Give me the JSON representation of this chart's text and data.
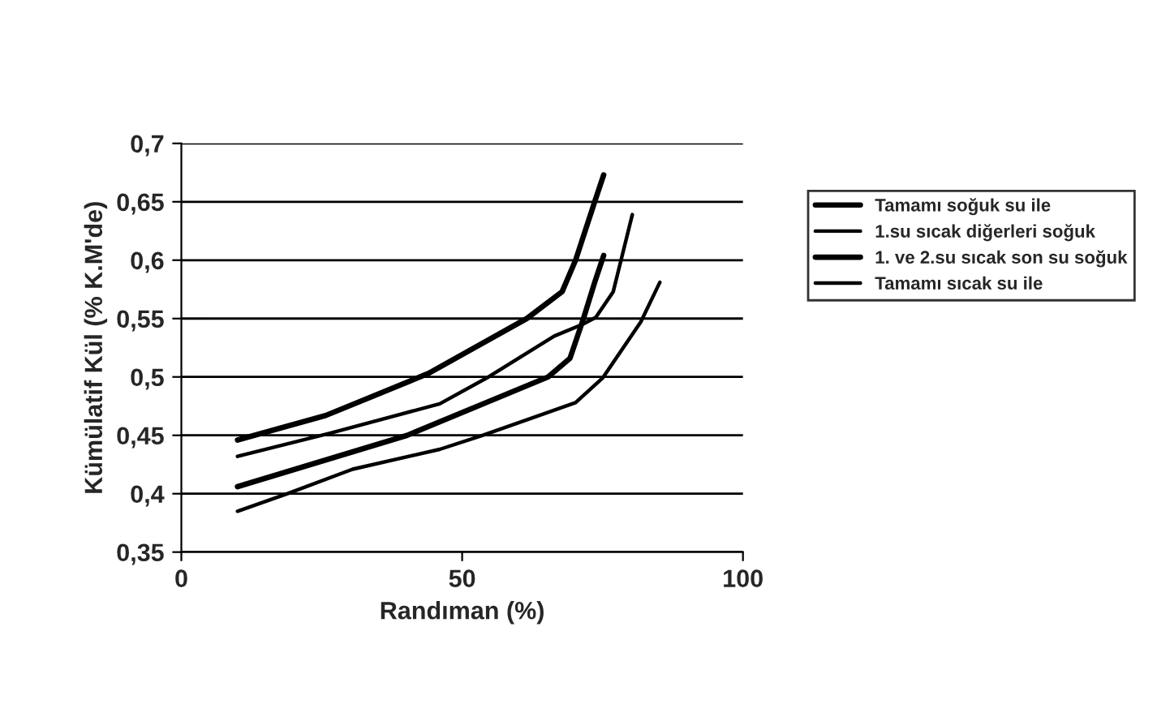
{
  "chart_data": {
    "type": "line",
    "xlabel": "Randıman (%)",
    "ylabel": "Kümülatif Kül (% K.M'de)",
    "xlim": [
      0,
      100
    ],
    "xticks": [
      0,
      50,
      100
    ],
    "ylim": [
      0.35,
      0.7
    ],
    "yticks": [
      {
        "value": 0.35,
        "label": "0,35"
      },
      {
        "value": 0.4,
        "label": "0,4"
      },
      {
        "value": 0.45,
        "label": "0,45"
      },
      {
        "value": 0.5,
        "label": "0,5"
      },
      {
        "value": 0.55,
        "label": "0,55"
      },
      {
        "value": 0.6,
        "label": "0,6"
      },
      {
        "value": 0.65,
        "label": "0,65"
      },
      {
        "value": 0.7,
        "label": "0,7"
      }
    ],
    "grid": "y",
    "legend": "right",
    "marker": "none",
    "line_style": "solid",
    "series": [
      {
        "name": "Tamamı soğuk su ile",
        "color": "#000000",
        "x": [
          10,
          25.7,
          44,
          61.5,
          67.8,
          70.2,
          73.6,
          75.2
        ],
        "values": [
          0.446,
          0.467,
          0.503,
          0.55,
          0.573,
          0.6,
          0.65,
          0.673
        ]
      },
      {
        "name": "1.su sıcak diğerleri soğuk",
        "color": "#000000",
        "x": [
          10,
          26.6,
          46,
          54.7,
          66.4,
          71.4,
          73.8,
          76.9,
          80.3
        ],
        "values": [
          0.432,
          0.452,
          0.477,
          0.5,
          0.535,
          0.545,
          0.551,
          0.573,
          0.639
        ]
      },
      {
        "name": "1. ve 2.su sıcak son su soğuk",
        "color": "#000000",
        "x": [
          10,
          40.2,
          65.3,
          69.2,
          71.6,
          73.6,
          75.2
        ],
        "values": [
          0.406,
          0.45,
          0.5,
          0.516,
          0.55,
          0.581,
          0.604
        ]
      },
      {
        "name": "Tamamı sıcak su ile",
        "color": "#000000",
        "x": [
          10,
          18.9,
          30.5,
          46,
          53.7,
          70.2,
          75,
          81.8,
          85.2
        ],
        "values": [
          0.385,
          0.4,
          0.421,
          0.438,
          0.45,
          0.478,
          0.499,
          0.547,
          0.581
        ]
      }
    ]
  }
}
